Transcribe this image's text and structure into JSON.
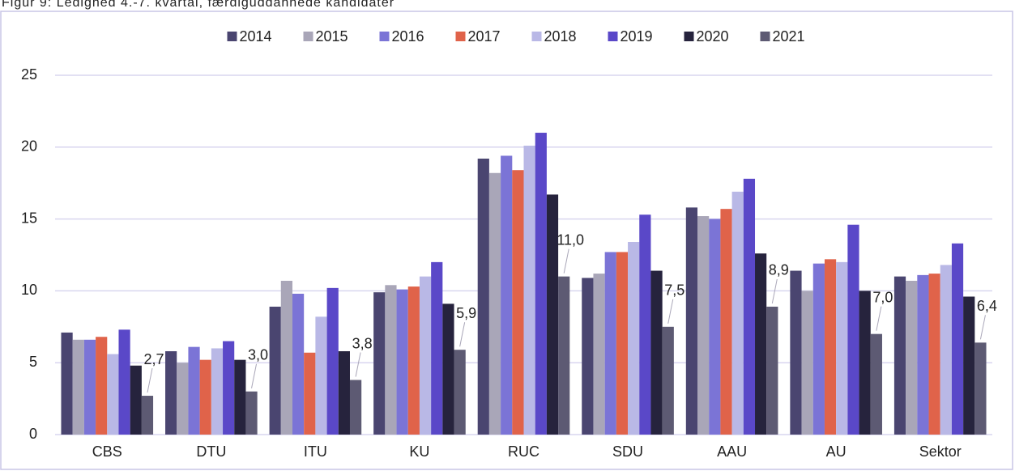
{
  "chart_data": {
    "type": "bar",
    "title": "Figur 9: Ledighed 4.-7. kvartal, færdiguddannede kandidater",
    "categories": [
      "CBS",
      "DTU",
      "ITU",
      "KU",
      "RUC",
      "SDU",
      "AAU",
      "AU",
      "Sektor"
    ],
    "series": [
      {
        "name": "2014",
        "color": "#4a4570",
        "values": [
          7.1,
          5.8,
          8.9,
          9.9,
          19.2,
          10.9,
          15.8,
          11.4,
          11.0
        ]
      },
      {
        "name": "2015",
        "color": "#a9a6b8",
        "values": [
          6.6,
          5.0,
          10.7,
          10.4,
          18.2,
          11.2,
          15.2,
          10.0,
          10.7
        ]
      },
      {
        "name": "2016",
        "color": "#7b74d6",
        "values": [
          6.6,
          6.1,
          9.8,
          10.1,
          19.4,
          12.7,
          15.0,
          11.9,
          11.1
        ]
      },
      {
        "name": "2017",
        "color": "#e0634a",
        "values": [
          6.8,
          5.2,
          5.7,
          10.3,
          18.4,
          12.7,
          15.7,
          12.2,
          11.2
        ]
      },
      {
        "name": "2018",
        "color": "#b9b8e6",
        "values": [
          5.6,
          6.0,
          8.2,
          11.0,
          20.1,
          13.4,
          16.9,
          12.0,
          11.8
        ]
      },
      {
        "name": "2019",
        "color": "#5a48c8",
        "values": [
          7.3,
          6.5,
          10.2,
          12.0,
          21.0,
          15.3,
          17.8,
          14.6,
          13.3
        ]
      },
      {
        "name": "2020",
        "color": "#26233d",
        "values": [
          4.8,
          5.2,
          5.8,
          9.1,
          16.7,
          11.4,
          12.6,
          10.0,
          9.6
        ]
      },
      {
        "name": "2021",
        "color": "#5d5a73",
        "values": [
          2.7,
          3.0,
          3.8,
          5.9,
          11.0,
          7.5,
          8.9,
          7.0,
          6.4
        ],
        "value_labels": [
          "2,7",
          "3,0",
          "3,8",
          "5,9",
          "11,0",
          "7,5",
          "8,9",
          "7,0",
          "6,4"
        ]
      }
    ],
    "ylim": [
      0,
      25
    ],
    "yticks": [
      0,
      5,
      10,
      15,
      20,
      25
    ],
    "grid": true,
    "legend": "top"
  }
}
